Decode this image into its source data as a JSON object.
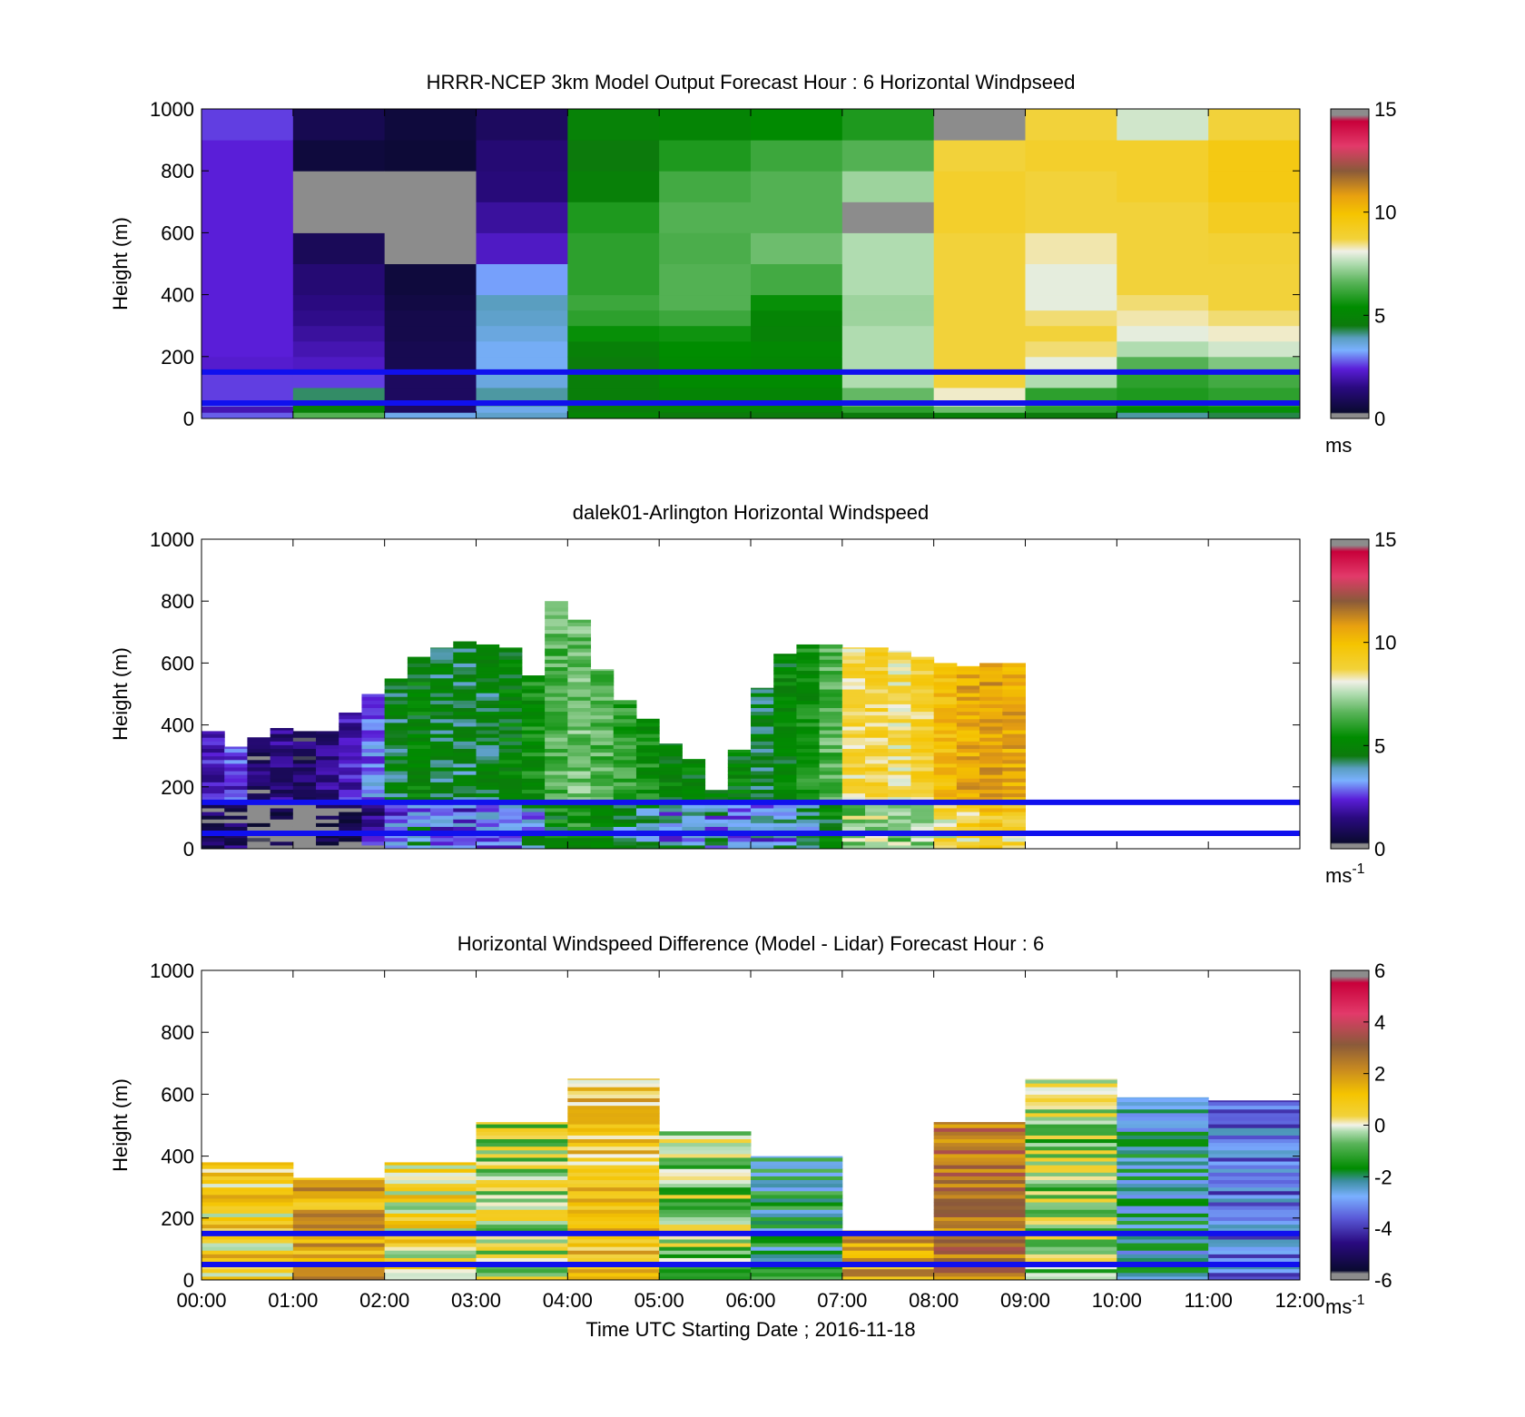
{
  "chart_data": [
    {
      "type": "heatmap",
      "title": "HRRR-NCEP 3km Model Output   Forecast Hour : 6 Horizontal Windpseed",
      "ylabel": "Height (m)",
      "xlabel": "",
      "ylim": [
        0,
        1000
      ],
      "yticks": [
        "0",
        "200",
        "400",
        "600",
        "800",
        "1000"
      ],
      "x": [
        "00:00",
        "01:00",
        "02:00",
        "03:00",
        "04:00",
        "05:00",
        "06:00",
        "07:00",
        "08:00",
        "09:00",
        "10:00",
        "11:00",
        "12:00"
      ],
      "heights": [
        0,
        20,
        40,
        60,
        100,
        150,
        200,
        250,
        300,
        350,
        400,
        500,
        600,
        700,
        800,
        900,
        1000
      ],
      "values": [
        [
          2.8,
          2.0,
          3.0,
          2.6,
          2.6,
          2.3,
          2.4,
          2.4,
          2.4,
          2.4,
          2.4,
          2.4,
          2.4,
          2.4,
          2.4,
          2.6
        ],
        [
          6.5,
          4.8,
          4.5,
          4.2,
          2.6,
          2.2,
          2.0,
          1.8,
          1.6,
          1.5,
          1.3,
          0.9,
          0.0,
          0.0,
          0.5,
          0.8
        ],
        [
          3.5,
          1.0,
          1.0,
          1.0,
          1.0,
          0.8,
          0.8,
          0.7,
          0.7,
          0.6,
          0.5,
          0.0,
          0.0,
          0.2,
          0.4,
          0.5
        ],
        [
          3.8,
          3.5,
          4.0,
          4.0,
          3.6,
          3.4,
          3.4,
          3.6,
          3.8,
          3.9,
          3.2,
          2.2,
          1.8,
          1.4,
          1.3,
          1.0
        ],
        [
          5.0,
          4.7,
          4.8,
          4.7,
          4.7,
          4.6,
          4.8,
          5.5,
          6.0,
          6.2,
          6.0,
          6.0,
          5.8,
          4.8,
          4.5,
          4.9
        ],
        [
          4.5,
          5.0,
          4.8,
          5.0,
          5.3,
          5.3,
          5.4,
          5.6,
          6.2,
          6.5,
          6.5,
          6.4,
          6.5,
          6.3,
          5.8,
          5.0
        ],
        [
          4.5,
          5.0,
          5.0,
          5.0,
          5.3,
          5.1,
          5.2,
          4.9,
          5.0,
          5.5,
          6.3,
          6.8,
          6.5,
          6.5,
          6.2,
          5.3
        ],
        [
          4.5,
          6.0,
          6.8,
          6.7,
          7.5,
          7.5,
          7.5,
          7.5,
          7.3,
          7.3,
          7.5,
          7.5,
          0.0,
          7.3,
          6.5,
          5.8
        ],
        [
          4.8,
          6.8,
          7.8,
          8.2,
          8.7,
          8.7,
          8.7,
          8.7,
          8.7,
          8.7,
          8.7,
          8.7,
          9.0,
          9.0,
          8.7,
          0.0
        ],
        [
          4.5,
          6.0,
          6.3,
          6.0,
          7.5,
          8.0,
          8.5,
          8.7,
          8.5,
          8.0,
          8.0,
          8.3,
          8.7,
          8.7,
          9.0,
          8.7
        ],
        [
          4.0,
          5.2,
          5.7,
          5.8,
          6.0,
          6.5,
          7.5,
          8.0,
          8.3,
          8.5,
          8.7,
          8.7,
          8.7,
          9.0,
          9.0,
          7.8
        ],
        [
          4.3,
          5.5,
          6.0,
          6.0,
          6.3,
          7.0,
          7.8,
          8.2,
          8.5,
          8.7,
          8.7,
          8.8,
          9.2,
          9.5,
          9.5,
          8.7
        ]
      ],
      "colorbar": {
        "ticks": [
          "0",
          "5",
          "10",
          "15"
        ],
        "unit": "ms",
        "superscript": ""
      },
      "colormap": "speed"
    },
    {
      "type": "heatmap",
      "title": "dalek01-Arlington  Horizontal Windspeed",
      "ylabel": "Height (m)",
      "xlabel": "",
      "ylim": [
        0,
        1000
      ],
      "yticks": [
        "0",
        "200",
        "400",
        "600",
        "800",
        "1000"
      ],
      "x": [
        "00:00",
        "01:00",
        "02:00",
        "03:00",
        "04:00",
        "05:00",
        "06:00",
        "07:00",
        "08:00",
        "09:00",
        "10:00",
        "11:00",
        "12:00"
      ],
      "bins_per_hour": 4,
      "top_heights": [
        380,
        330,
        360,
        390,
        380,
        380,
        440,
        500,
        550,
        620,
        650,
        670,
        660,
        650,
        560,
        800,
        740,
        580,
        480,
        420,
        340,
        290,
        190,
        320,
        520,
        630,
        660,
        660,
        650,
        650,
        640,
        620,
        600,
        590,
        600,
        600
      ],
      "profile_speeds": [
        2.0,
        2.5,
        1.0,
        1.5,
        1.0,
        1.5,
        2.0,
        3.0,
        4.5,
        5.0,
        4.5,
        4.3,
        4.5,
        5.0,
        5.5,
        6.5,
        6.8,
        6.5,
        6.0,
        5.5,
        5.0,
        5.0,
        5.2,
        5.0,
        4.5,
        5.0,
        5.5,
        6.5,
        8.7,
        9.0,
        8.5,
        9.0,
        10.0,
        10.5,
        10.8,
        10.5
      ],
      "colorbar": {
        "ticks": [
          "0",
          "5",
          "10",
          "15"
        ],
        "unit": "ms",
        "superscript": "-1"
      },
      "colormap": "speed"
    },
    {
      "type": "heatmap",
      "title": "Horizontal Windspeed Difference (Model - Lidar) Forecast Hour : 6",
      "ylabel": "Height (m)",
      "xlabel": "Time UTC  Starting Date ; 2016-11-18",
      "ylim": [
        0,
        1000
      ],
      "yticks": [
        "0",
        "200",
        "400",
        "600",
        "800",
        "1000"
      ],
      "x": [
        "00:00",
        "01:00",
        "02:00",
        "03:00",
        "04:00",
        "05:00",
        "06:00",
        "07:00",
        "08:00",
        "09:00",
        "10:00",
        "11:00",
        "12:00"
      ],
      "column_tops": [
        380,
        330,
        380,
        510,
        650,
        480,
        400,
        160,
        510,
        650,
        590,
        580
      ],
      "column_means": [
        0.8,
        1.6,
        0.5,
        -0.2,
        1.0,
        -0.6,
        -1.8,
        1.6,
        2.5,
        -0.5,
        -2.2,
        -3.2
      ],
      "colorbar": {
        "ticks": [
          "-6",
          "-4",
          "-2",
          "0",
          "2",
          "4",
          "6"
        ],
        "unit": "ms",
        "superscript": "-1"
      },
      "colormap": "diff"
    }
  ],
  "reference_lines": {
    "heights": [
      50,
      150
    ],
    "color": "#1010ee"
  }
}
